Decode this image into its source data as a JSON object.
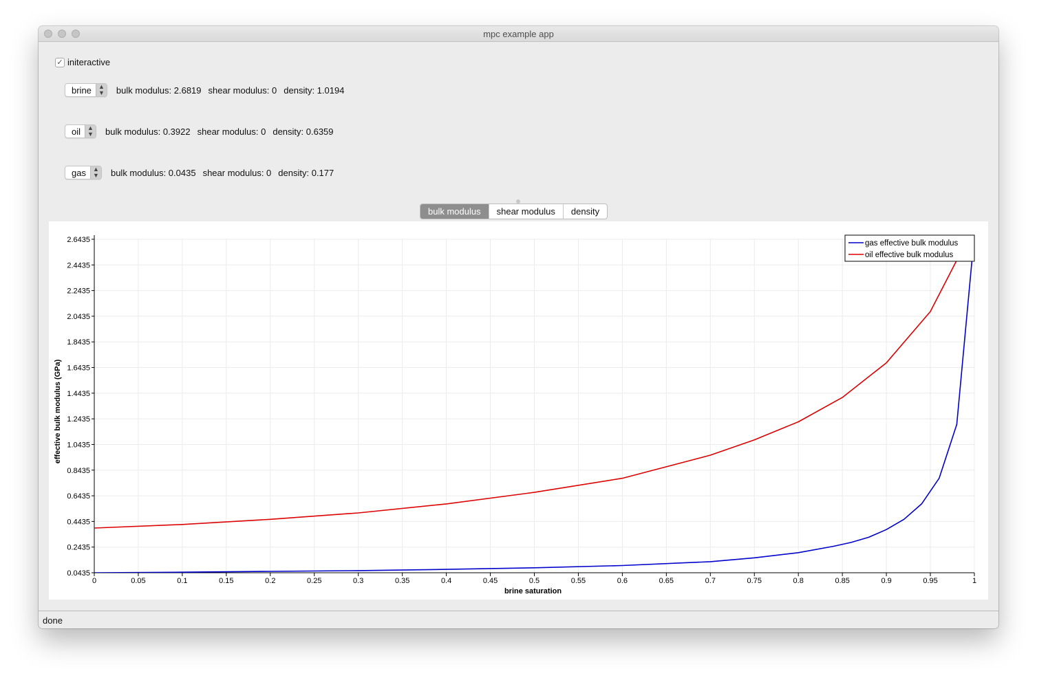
{
  "window": {
    "title": "mpc example app"
  },
  "interactive": {
    "label": "initeractive",
    "checked": true
  },
  "fluids": [
    {
      "name": "brine",
      "bulk": "bulk modulus: 2.6819",
      "shear": "shear modulus: 0",
      "density": "density: 1.0194"
    },
    {
      "name": "oil",
      "bulk": "bulk modulus: 0.3922",
      "shear": "shear modulus: 0",
      "density": "density: 0.6359"
    },
    {
      "name": "gas",
      "bulk": "bulk modulus: 0.0435",
      "shear": "shear modulus: 0",
      "density": "density: 0.177"
    }
  ],
  "tabs": [
    {
      "label": "bulk modulus",
      "active": true
    },
    {
      "label": "shear modulus",
      "active": false
    },
    {
      "label": "density",
      "active": false
    }
  ],
  "status": {
    "text": "done"
  },
  "chart_data": {
    "type": "line",
    "xlabel": "brine saturation",
    "ylabel": "effective bulk modulus (GPa)",
    "xlim": [
      0,
      1
    ],
    "ylim": [
      0.0435,
      2.6435
    ],
    "grid": true,
    "legend_position": "top-right",
    "x_ticks": [
      "0",
      "0.05",
      "0.1",
      "0.15",
      "0.2",
      "0.25",
      "0.3",
      "0.35",
      "0.4",
      "0.45",
      "0.5",
      "0.55",
      "0.6",
      "0.65",
      "0.7",
      "0.75",
      "0.8",
      "0.85",
      "0.9",
      "0.95",
      "1"
    ],
    "y_ticks": [
      "0.0435",
      "0.2435",
      "0.4435",
      "0.6435",
      "0.8435",
      "1.0435",
      "1.2435",
      "1.4435",
      "1.6435",
      "1.8435",
      "2.0435",
      "2.2435",
      "2.4435",
      "2.6435"
    ],
    "series": [
      {
        "name": "gas effective bulk modulus",
        "color": "#0000cc",
        "x": [
          0,
          0.1,
          0.2,
          0.3,
          0.4,
          0.5,
          0.6,
          0.7,
          0.75,
          0.8,
          0.84,
          0.86,
          0.88,
          0.9,
          0.92,
          0.94,
          0.96,
          0.98,
          1.0
        ],
        "y": [
          0.0435,
          0.048,
          0.054,
          0.06,
          0.07,
          0.082,
          0.1,
          0.13,
          0.16,
          0.2,
          0.25,
          0.28,
          0.32,
          0.38,
          0.46,
          0.58,
          0.78,
          1.2,
          2.6819
        ]
      },
      {
        "name": "oil effective bulk modulus",
        "color": "#dd0000",
        "x": [
          0,
          0.1,
          0.2,
          0.3,
          0.4,
          0.5,
          0.6,
          0.7,
          0.75,
          0.8,
          0.85,
          0.9,
          0.95,
          0.98
        ],
        "y": [
          0.3922,
          0.42,
          0.46,
          0.51,
          0.58,
          0.67,
          0.78,
          0.96,
          1.08,
          1.22,
          1.41,
          1.68,
          2.08,
          2.48
        ]
      }
    ]
  }
}
